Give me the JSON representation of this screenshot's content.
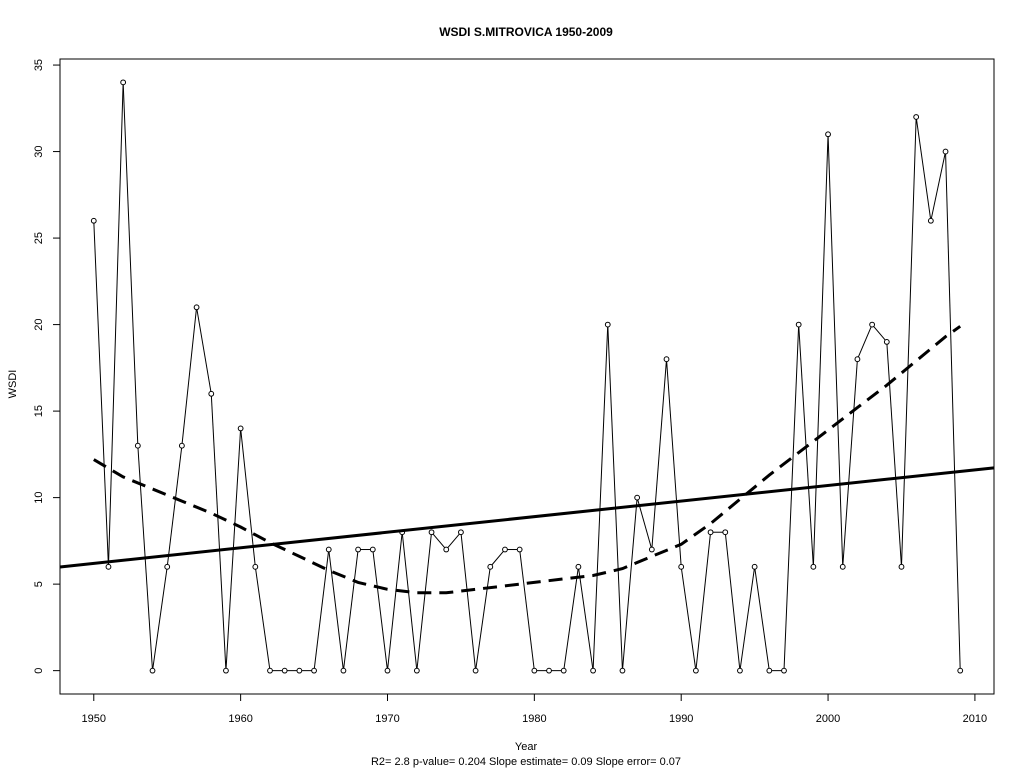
{
  "chart_data": {
    "type": "line",
    "title": "WSDI   S.MITROVICA 1950-2009",
    "xlabel": "Year",
    "ylabel": "WSDI",
    "subtitle": "R2= 2.8  p-value= 0.204  Slope estimate= 0.09  Slope error= 0.07",
    "xlim": [
      1947.7,
      2011.3
    ],
    "ylim": [
      -1.35,
      35.35
    ],
    "xticks": [
      1950,
      1960,
      1970,
      1980,
      1990,
      2000,
      2010
    ],
    "yticks": [
      0,
      5,
      10,
      15,
      20,
      25,
      30,
      35
    ],
    "grid": false,
    "series": [
      {
        "style": "points-and-lines",
        "x": [
          1950,
          1951,
          1952,
          1953,
          1954,
          1955,
          1956,
          1957,
          1958,
          1959,
          1960,
          1961,
          1962,
          1963,
          1964,
          1965,
          1966,
          1967,
          1968,
          1969,
          1970,
          1971,
          1972,
          1973,
          1974,
          1975,
          1976,
          1977,
          1978,
          1979,
          1980,
          1981,
          1982,
          1983,
          1984,
          1985,
          1986,
          1987,
          1988,
          1989,
          1990,
          1991,
          1992,
          1993,
          1994,
          1995,
          1996,
          1997,
          1998,
          1999,
          2000,
          2001,
          2002,
          2003,
          2004,
          2005,
          2006,
          2007,
          2008,
          2009
        ],
        "y": [
          26,
          6,
          34,
          13,
          0,
          6,
          13,
          21,
          16,
          0,
          14,
          6,
          0,
          0,
          0,
          0,
          7,
          0,
          7,
          7,
          0,
          8,
          0,
          8,
          7,
          8,
          0,
          6,
          7,
          7,
          0,
          0,
          0,
          6,
          0,
          20,
          0,
          10,
          7,
          18,
          6,
          0,
          8,
          8,
          0,
          6,
          0,
          0,
          20,
          6,
          31,
          6,
          18,
          20,
          19,
          6,
          32,
          26,
          30,
          0
        ]
      },
      {
        "style": "solid-thick",
        "x": [
          1947.7,
          2011.3
        ],
        "y": [
          5.99,
          11.72
        ]
      },
      {
        "style": "dashed",
        "x": [
          1950,
          1952,
          1954,
          1956,
          1958,
          1960,
          1962,
          1964,
          1966,
          1968,
          1970,
          1972,
          1974,
          1976,
          1978,
          1980,
          1982,
          1984,
          1986,
          1988,
          1990,
          1992,
          1994,
          1996,
          1998,
          2000,
          2002,
          2004,
          2006,
          2008,
          2009
        ],
        "y": [
          12.2,
          11.2,
          10.5,
          9.8,
          9.1,
          8.3,
          7.4,
          6.6,
          5.8,
          5.1,
          4.7,
          4.5,
          4.5,
          4.7,
          4.9,
          5.1,
          5.3,
          5.5,
          5.9,
          6.6,
          7.3,
          8.5,
          9.9,
          11.3,
          12.6,
          13.9,
          15.2,
          16.5,
          17.9,
          19.3,
          19.9
        ]
      }
    ]
  }
}
